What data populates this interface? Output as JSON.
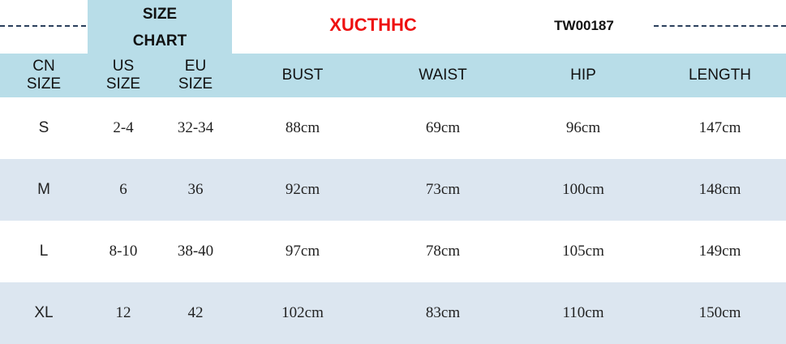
{
  "title": {
    "line1": "SIZE",
    "line2": "CHART"
  },
  "brand": "XUCTHHC",
  "code": "TW00187",
  "colors": {
    "header": "#b8dde8",
    "alt_row": "#dce6f0",
    "brand": "#ee1111"
  },
  "headers": [
    [
      "CN",
      "SIZE"
    ],
    [
      "US",
      "SIZE"
    ],
    [
      "EU",
      "SIZE"
    ],
    [
      "BUST"
    ],
    [
      "WAIST"
    ],
    [
      "HIP"
    ],
    [
      "LENGTH"
    ]
  ],
  "rows": [
    [
      "S",
      "2-4",
      "32-34",
      "88cm",
      "69cm",
      "96cm",
      "147cm"
    ],
    [
      "M",
      "6",
      "36",
      "92cm",
      "73cm",
      "100cm",
      "148cm"
    ],
    [
      "L",
      "8-10",
      "38-40",
      "97cm",
      "78cm",
      "105cm",
      "149cm"
    ],
    [
      "XL",
      "12",
      "42",
      "102cm",
      "83cm",
      "110cm",
      "150cm"
    ]
  ]
}
